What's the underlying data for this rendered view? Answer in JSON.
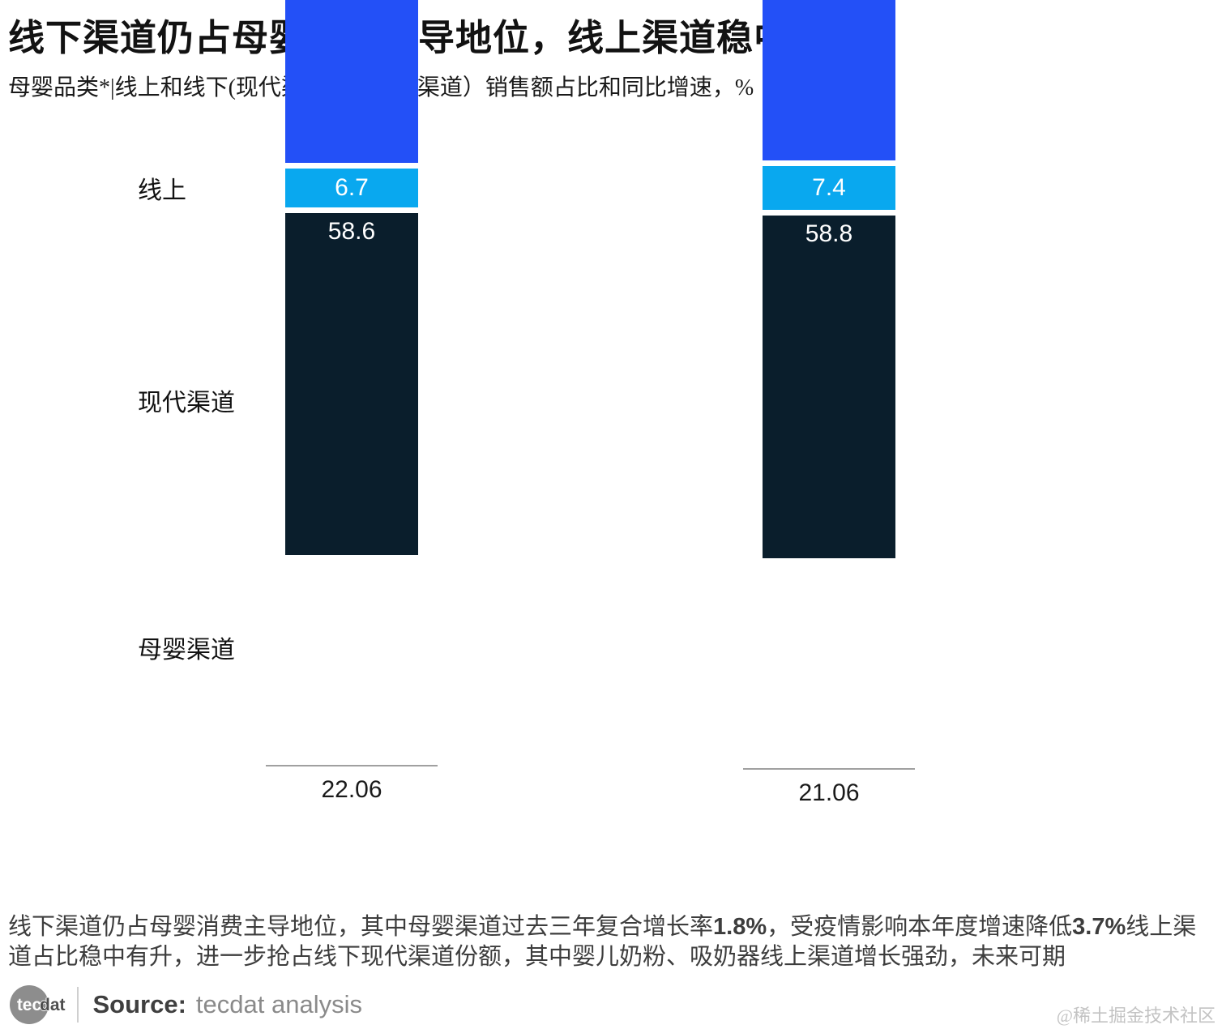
{
  "header": {
    "title": "线下渠道仍占母婴消费主导地位，线上渠道稳中有升",
    "subtitle": "母婴品类*|线上和线下(现代渠道和母婴店渠道）销售额占比和同比增速，%"
  },
  "chart_data": {
    "type": "bar",
    "stacked": true,
    "orientation": "vertical",
    "unit": "%",
    "categories": [
      "22.06",
      "21.06"
    ],
    "series": [
      {
        "name": "线上",
        "color": "#2350f7",
        "values": [
          34.6,
          33.6
        ]
      },
      {
        "name": "现代渠道",
        "color": "#09a8ef",
        "values": [
          6.7,
          7.4
        ]
      },
      {
        "name": "母婴渠道",
        "color": "#0a1e2c",
        "values": [
          58.6,
          58.8
        ]
      }
    ],
    "value_label_color": "#ffffff",
    "axis_line_color": "#a0a0a0",
    "ylim": [
      0,
      100
    ],
    "grid": false,
    "legend_position": "left-row-labels"
  },
  "commentary": [
    {
      "text": "线下渠道仍占母婴消费主导地位，其中母婴渠道过去三年复合增长率",
      "bold": false
    },
    {
      "text": "1.8%",
      "bold": true
    },
    {
      "text": "，受疫情影响本年度增速降低",
      "bold": false
    },
    {
      "text": "3.7%",
      "bold": true
    },
    {
      "text": "线上渠道占比稳中有升，进一步抢占线下现代渠道份额，其中婴儿奶粉、吸奶器线上渠道增长强劲，未来可期",
      "bold": false
    }
  ],
  "footer": {
    "logo": {
      "circle_text": "tec",
      "suffix_text": "dat"
    },
    "source_label": "Source:",
    "source_value": "tecdat analysis"
  },
  "watermark": "@稀土掘金技术社区"
}
